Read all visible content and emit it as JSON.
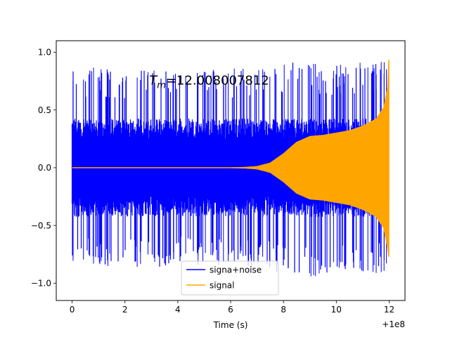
{
  "chart_data": {
    "type": "line",
    "title": "",
    "annotation": {
      "prefix": "T",
      "subscript": "m",
      "value": "=12.008007812",
      "x": 3.0,
      "y": 0.8
    },
    "xlabel": "Time (s)",
    "ylabel": "",
    "x_offset_label": "+1e8",
    "xlim": [
      -0.6,
      12.6
    ],
    "ylim": [
      -1.15,
      1.1
    ],
    "xticks": [
      0,
      2,
      4,
      6,
      8,
      10,
      12
    ],
    "xtick_labels": [
      "0",
      "2",
      "4",
      "6",
      "8",
      "10",
      "12"
    ],
    "yticks": [
      -1.0,
      -0.5,
      0.0,
      0.5,
      1.0
    ],
    "ytick_labels": [
      "−1.0",
      "−0.5",
      "0.0",
      "0.5",
      "1.0"
    ],
    "grid": false,
    "legend_position": "lower-center",
    "series": [
      {
        "name": "signa+noise",
        "color": "#0000ff",
        "x_range": [
          0,
          12
        ],
        "envelope_x": [
          0,
          1,
          2,
          3,
          4,
          5,
          6,
          7,
          7.5,
          8,
          8.5,
          9,
          10,
          11,
          11.5,
          11.8,
          12
        ],
        "envelope_upper": [
          0.88,
          0.87,
          0.85,
          0.85,
          0.84,
          0.85,
          0.86,
          0.87,
          0.88,
          0.89,
          0.92,
          0.9,
          0.9,
          0.92,
          0.94,
          0.95,
          0.85
        ],
        "envelope_lower": [
          -0.84,
          -0.85,
          -0.87,
          -0.86,
          -0.85,
          -0.84,
          -0.86,
          -0.88,
          -0.9,
          -0.92,
          -1.0,
          -0.98,
          -0.9,
          -0.95,
          -0.93,
          -0.94,
          -0.79
        ],
        "typical_upper": 0.45,
        "typical_lower": -0.45
      },
      {
        "name": "signal",
        "color": "#ffa500",
        "envelope_x": [
          0,
          6,
          6.5,
          7,
          7.5,
          8,
          8.5,
          9,
          9.5,
          10,
          10.5,
          11,
          11.5,
          11.8,
          11.95,
          12
        ],
        "envelope_upper": [
          0,
          0,
          0.002,
          0.01,
          0.04,
          0.12,
          0.22,
          0.27,
          0.28,
          0.3,
          0.32,
          0.36,
          0.42,
          0.52,
          0.7,
          1.0
        ],
        "envelope_lower": [
          0,
          0,
          -0.002,
          -0.01,
          -0.04,
          -0.12,
          -0.22,
          -0.27,
          -0.28,
          -0.3,
          -0.32,
          -0.36,
          -0.42,
          -0.52,
          -0.7,
          -0.79
        ]
      }
    ]
  }
}
